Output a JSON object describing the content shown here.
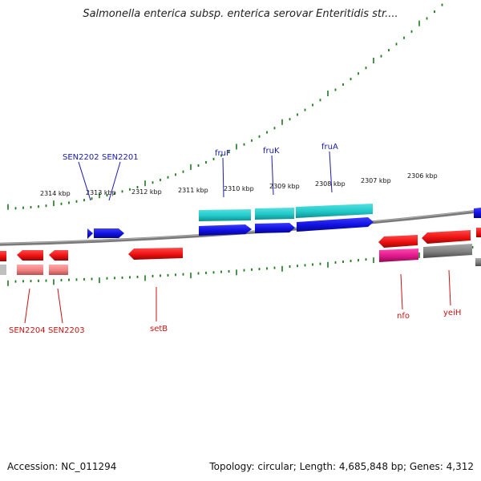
{
  "title": "Salmonella enterica subsp. enterica serovar Enteritidis str....",
  "footer": {
    "accession": "Accession: NC_011294",
    "summary": "Topology: circular; Length: 4,685,848 bp; Genes: 4,312"
  },
  "scale_labels": [
    "2314 kbp",
    "2313 kbp",
    "2312 kbp",
    "2311 kbp",
    "2310 kbp",
    "2309 kbp",
    "2308 kbp",
    "2307 kbp",
    "2306 kbp"
  ],
  "gene_labels": {
    "forward": [
      "SEN2202",
      "SEN2201",
      "fruF",
      "fruK",
      "fruA"
    ],
    "reverse": [
      "SEN2204",
      "SEN2203",
      "setB",
      "nfo",
      "yeiH"
    ]
  },
  "colors": {
    "forward_label": "#1a1ab0",
    "reverse_label": "#cc1111",
    "tick": "#1a7a1a",
    "backbone": "#8a8a8a",
    "cds_forward": "#1010e0",
    "cds_reverse": "#ee1111",
    "feature_cyan": "#22c8c8",
    "feature_pink": "#e0188a",
    "feature_salmon": "#f08080",
    "feature_gray": "#808080"
  }
}
